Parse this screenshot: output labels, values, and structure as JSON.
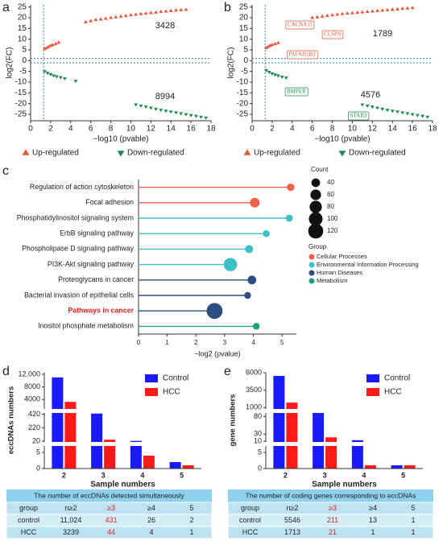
{
  "chart_data": [
    {
      "label": "a",
      "type": "scatter",
      "xlabel": "−log10 (pvable)",
      "ylabel": "log2(FC)",
      "xlim": [
        0,
        18
      ],
      "xticks": [
        0,
        2,
        4,
        6,
        8,
        10,
        12,
        14,
        16,
        18
      ],
      "ylim": [
        -28,
        26
      ],
      "yticks": [
        -25,
        -20,
        -15,
        -10,
        -5,
        0,
        5,
        10,
        15,
        20,
        25
      ],
      "thresholds": {
        "x": [
          1.3
        ],
        "y": [
          -1,
          1
        ],
        "color": "#2a7fd0"
      },
      "annotations": [
        "3428",
        "8994"
      ],
      "series": [
        {
          "name": "Up-regulated",
          "color": "#e8553a",
          "marker": "triangle-up",
          "x": [
            1.4,
            1.6,
            1.8,
            2.0,
            2.2,
            2.5,
            2.8,
            5.5,
            6,
            6.5,
            7,
            7.5,
            8,
            8.5,
            9,
            9.5,
            10,
            10.5,
            11,
            11.5,
            12,
            12.5,
            13,
            13.5,
            14,
            14.5,
            15,
            15.5
          ],
          "values": [
            5.5,
            6,
            6.5,
            7,
            7.3,
            7.8,
            8.5,
            18,
            18.5,
            19,
            19.3,
            19.6,
            20,
            20.3,
            20.6,
            20.9,
            21.2,
            21.5,
            21.8,
            22,
            22.3,
            22.5,
            22.8,
            23,
            23.2,
            23.4,
            23.6,
            23.8
          ]
        },
        {
          "name": "Down-regulated",
          "color": "#1e8a4e",
          "marker": "triangle-down",
          "x": [
            1.4,
            1.7,
            2,
            2.3,
            2.6,
            3,
            3.4,
            4.5,
            10.5,
            11,
            11.5,
            12,
            12.5,
            13,
            13.5,
            14,
            14.5,
            15,
            15.5,
            16,
            16.5,
            17,
            17.5
          ],
          "values": [
            -5,
            -5.8,
            -6.4,
            -7,
            -7.4,
            -7.8,
            -8.3,
            -9.5,
            -20.5,
            -21,
            -21.5,
            -22,
            -22.5,
            -23,
            -23.4,
            -23.8,
            -24.2,
            -24.6,
            -25,
            -25.4,
            -25.8,
            -26.2,
            -26.6
          ]
        }
      ]
    },
    {
      "label": "b",
      "type": "scatter",
      "xlabel": "−log10 (pvable)",
      "ylabel": "log2(FC)",
      "xlim": [
        0,
        18
      ],
      "xticks": [
        0,
        2,
        4,
        6,
        8,
        10,
        12,
        14,
        16,
        18
      ],
      "ylim": [
        -28,
        26
      ],
      "yticks": [
        -25,
        -20,
        -15,
        -10,
        -5,
        0,
        5,
        10,
        15,
        20,
        25
      ],
      "thresholds": {
        "x": [
          1.3
        ],
        "y": [
          -1,
          1
        ],
        "color": "#2a7fd0"
      },
      "annotations": [
        "1789",
        "4576"
      ],
      "gene_labels": [
        {
          "text": "CACNA1I",
          "color": "#e0553a"
        },
        {
          "text": "CLSPN",
          "color": "#e0553a"
        },
        {
          "text": "PAFAH1B3",
          "color": "#e0553a"
        },
        {
          "text": "BMPER",
          "color": "#1e8a4e"
        },
        {
          "text": "STAB2",
          "color": "#1e8a4e"
        }
      ],
      "series": [
        {
          "name": "Up-regulated",
          "color": "#e8553a",
          "marker": "triangle-up",
          "x": [
            1.4,
            1.6,
            1.8,
            2.0,
            2.3,
            2.6,
            6,
            6.5,
            7,
            7.5,
            8,
            8.5,
            9,
            9.5,
            10,
            10.5,
            11,
            11.5,
            12,
            12.5,
            13,
            13.5,
            14,
            14.5,
            15,
            15.5,
            16
          ],
          "values": [
            6,
            6.5,
            7,
            7.4,
            7.8,
            8.3,
            20,
            20.3,
            20.6,
            20.9,
            21.2,
            21.5,
            21.8,
            22,
            22.2,
            22.4,
            22.6,
            22.8,
            23,
            23.2,
            23.4,
            23.6,
            23.8,
            24,
            24.2,
            24.4,
            24.6
          ]
        },
        {
          "name": "Down-regulated",
          "color": "#1e8a4e",
          "marker": "triangle-down",
          "x": [
            1.4,
            1.7,
            2,
            2.3,
            2.6,
            3,
            3.4,
            11,
            11.5,
            12,
            12.5,
            13,
            13.5,
            14,
            14.5,
            15,
            15.5,
            16,
            16.5,
            17,
            17.5
          ],
          "values": [
            -4.5,
            -5.3,
            -6,
            -6.6,
            -7,
            -7.5,
            -8,
            -20.5,
            -21,
            -21.5,
            -22,
            -22.5,
            -23,
            -23.4,
            -23.8,
            -24.2,
            -24.6,
            -25,
            -25.4,
            -25.8,
            -26.2
          ]
        }
      ]
    },
    {
      "label": "c",
      "type": "lollipop",
      "xlabel": "−log2 (pvalue)",
      "xlim": [
        0,
        5.5
      ],
      "xticks": [
        0,
        1,
        2,
        3,
        4,
        5
      ],
      "categories": [
        "Regulation of action cytoskeleton",
        "Focal adhesion",
        "Phosphatidylinositol signaling system",
        "ErbB signaling pathway",
        "Phospholipase D signaling pathway",
        "PI3K-Akt signaling pathway",
        "Proteoglycans in cancer",
        "Bacterial invasion of epithelial cells",
        "Pathways in cancer",
        "Inositol phosphate metabolism"
      ],
      "values": [
        5.3,
        4.05,
        5.25,
        4.45,
        3.85,
        3.2,
        3.95,
        3.8,
        2.65,
        4.1
      ],
      "counts": [
        30,
        50,
        26,
        25,
        35,
        95,
        40,
        25,
        135,
        25
      ],
      "group_of": [
        0,
        0,
        1,
        1,
        1,
        1,
        2,
        2,
        2,
        3
      ],
      "groups": [
        {
          "name": "Cellular Processes",
          "color": "#f0604a"
        },
        {
          "name": "Environmental Information Processing",
          "color": "#3bc0c8"
        },
        {
          "name": "Human Diseases",
          "color": "#2a4f80"
        },
        {
          "name": "Metabolism",
          "color": "#20a080"
        }
      ],
      "group_title": "Group",
      "size_legend": {
        "title": "Count",
        "values": [
          40,
          60,
          80,
          100,
          120
        ]
      },
      "highlight_index": 8,
      "highlight_color": "#e02020"
    },
    {
      "label": "d",
      "type": "broken_bar",
      "xlabel": "Sample numbers",
      "ylabel": "eccDNAs numbers",
      "categories": [
        "2",
        "3",
        "4",
        "5"
      ],
      "segments": [
        {
          "ylim": [
            0,
            7
          ],
          "yticks": [
            0,
            5
          ]
        },
        {
          "ylim": [
            10,
            440
          ],
          "yticks": [
            20,
            220,
            420
          ]
        },
        {
          "ylim": [
            1000,
            12500
          ],
          "yticks": [
            4000,
            8000,
            {
              "value": 12000,
              "label": "12,000"
            }
          ]
        }
      ],
      "series": [
        {
          "name": "Control",
          "color": "#1a1aff",
          "values": [
            11024,
            431,
            26,
            2
          ],
          "value_labels": [
            "11,024",
            "431",
            "26",
            "2"
          ]
        },
        {
          "name": "HCC",
          "color": "#ff1a1a",
          "values": [
            3239,
            44,
            4,
            1
          ]
        }
      ],
      "table": {
        "title": "The number of eccDNAs detected simultaneously",
        "columns": [
          "group",
          "n≥2",
          "≥3",
          "≥4",
          "5"
        ],
        "rows": [
          "control",
          "HCC"
        ],
        "highlight_column": 2,
        "highlight_color": "#e02020"
      }
    },
    {
      "label": "e",
      "type": "broken_bar",
      "xlabel": "Sample numbers",
      "ylabel": "gene numbers",
      "categories": [
        "2",
        "3",
        "4",
        "5"
      ],
      "segments": [
        {
          "ylim": [
            0,
            7
          ],
          "yticks": [
            0,
            5
          ]
        },
        {
          "ylim": [
            8,
            90
          ],
          "yticks": [
            10,
            30,
            80
          ]
        },
        {
          "ylim": [
            800,
            6000
          ],
          "yticks": [
            1000,
            3500,
            6000
          ]
        }
      ],
      "series": [
        {
          "name": "Control",
          "color": "#1a1aff",
          "values": [
            5546,
            211,
            13,
            1
          ]
        },
        {
          "name": "HCC",
          "color": "#ff1a1a",
          "values": [
            1713,
            21,
            1,
            1
          ]
        }
      ],
      "table": {
        "title": "The number of coding genes corresponding to eccDNAs",
        "columns": [
          "group",
          "n≥2",
          "≥3",
          "≥4",
          "5"
        ],
        "rows": [
          "control",
          "HCC"
        ],
        "highlight_column": 2,
        "highlight_color": "#e02020"
      }
    }
  ]
}
